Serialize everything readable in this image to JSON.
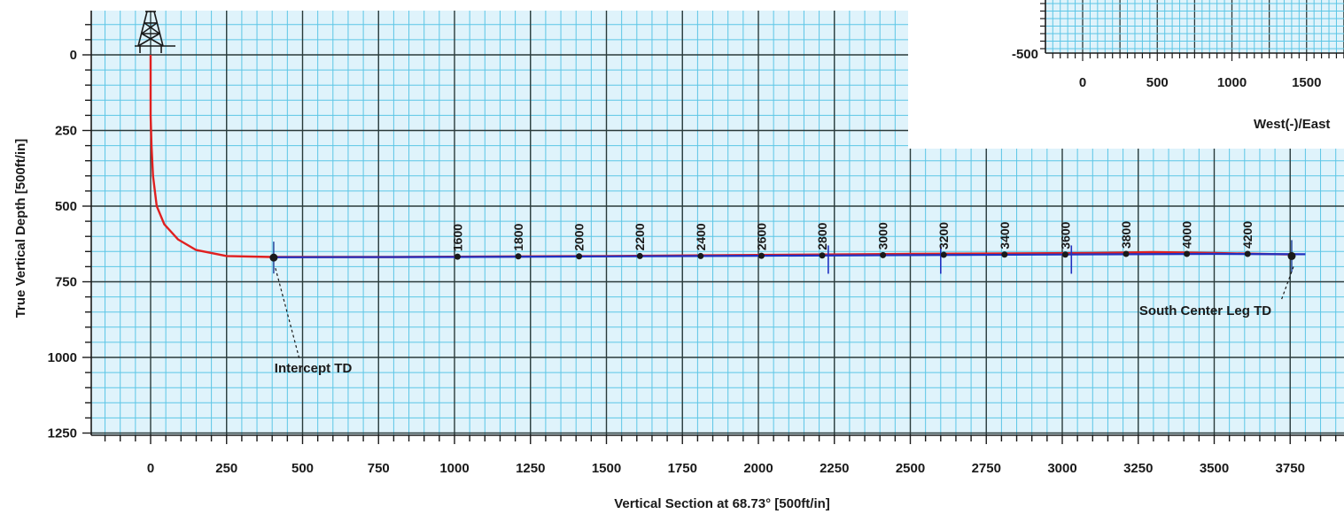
{
  "chart_data": [
    {
      "type": "line",
      "xlabel": "Vertical Section at 68.73° [500ft/in]",
      "ylabel": "True Vertical Depth [500ft/in]",
      "xlim": [
        -200,
        3950
      ],
      "ylim": [
        1270,
        -150
      ],
      "y_inverted": true,
      "x_ticks": [
        0,
        250,
        500,
        750,
        1000,
        1250,
        1500,
        1750,
        2000,
        2250,
        2500,
        2750,
        3000,
        3250,
        3500,
        3750
      ],
      "y_ticks": [
        0,
        250,
        500,
        750,
        1000,
        1250
      ],
      "grid": true,
      "colors": {
        "background": "#dff3fb",
        "minor_grid": "#5cc6e6",
        "major_grid": "#2a3a3a",
        "well_path": "#e02020",
        "plan_path": "#2030c0"
      },
      "series": [
        {
          "color": "#e02020",
          "points": [
            [
              0,
              0
            ],
            [
              0,
              100
            ],
            [
              0,
              200
            ],
            [
              3,
              300
            ],
            [
              8,
              400
            ],
            [
              20,
              500
            ],
            [
              45,
              560
            ],
            [
              90,
              610
            ],
            [
              150,
              645
            ],
            [
              250,
              665
            ],
            [
              400,
              668
            ],
            [
              800,
              668
            ],
            [
              1500,
              665
            ],
            [
              2500,
              658
            ],
            [
              3100,
              655
            ],
            [
              3300,
              652
            ],
            [
              3500,
              655
            ],
            [
              3760,
              660
            ]
          ]
        },
        {
          "color": "#2030c0",
          "points": [
            [
              400,
              669
            ],
            [
              1000,
              668
            ],
            [
              1500,
              666
            ],
            [
              2000,
              664
            ],
            [
              2500,
              662
            ],
            [
              3000,
              660
            ],
            [
              3500,
              658
            ],
            [
              3800,
              659
            ]
          ]
        }
      ],
      "md_markers": [
        {
          "label": "1600",
          "x": 1010,
          "y": 667
        },
        {
          "label": "1800",
          "x": 1210,
          "y": 666
        },
        {
          "label": "2000",
          "x": 1410,
          "y": 666
        },
        {
          "label": "2200",
          "x": 1610,
          "y": 665
        },
        {
          "label": "2400",
          "x": 1810,
          "y": 665
        },
        {
          "label": "2600",
          "x": 2010,
          "y": 664
        },
        {
          "label": "2800",
          "x": 2210,
          "y": 663
        },
        {
          "label": "3000",
          "x": 2410,
          "y": 662
        },
        {
          "label": "3200",
          "x": 2610,
          "y": 661
        },
        {
          "label": "3400",
          "x": 2810,
          "y": 660
        },
        {
          "label": "3600",
          "x": 3010,
          "y": 660
        },
        {
          "label": "3800",
          "x": 3210,
          "y": 658
        },
        {
          "label": "4000",
          "x": 3410,
          "y": 658
        },
        {
          "label": "4200",
          "x": 3610,
          "y": 658
        }
      ],
      "targets": [
        {
          "x": 405,
          "y": 670,
          "label": "Intercept TD",
          "label_x": 495,
          "label_y": 1050
        },
        {
          "x": 3755,
          "y": 665,
          "label": "South Center Leg TD",
          "label_x": 3370,
          "label_y": 860
        }
      ],
      "plan_ticks": [
        2230,
        2600,
        3030
      ],
      "rig_icon": "drilling-rig-icon"
    },
    {
      "type": "line",
      "xlabel": "West(-)/East",
      "ylabel": "",
      "x_ticks": [
        0,
        500,
        1000,
        1500
      ],
      "y_ticks": [
        -500
      ]
    }
  ]
}
